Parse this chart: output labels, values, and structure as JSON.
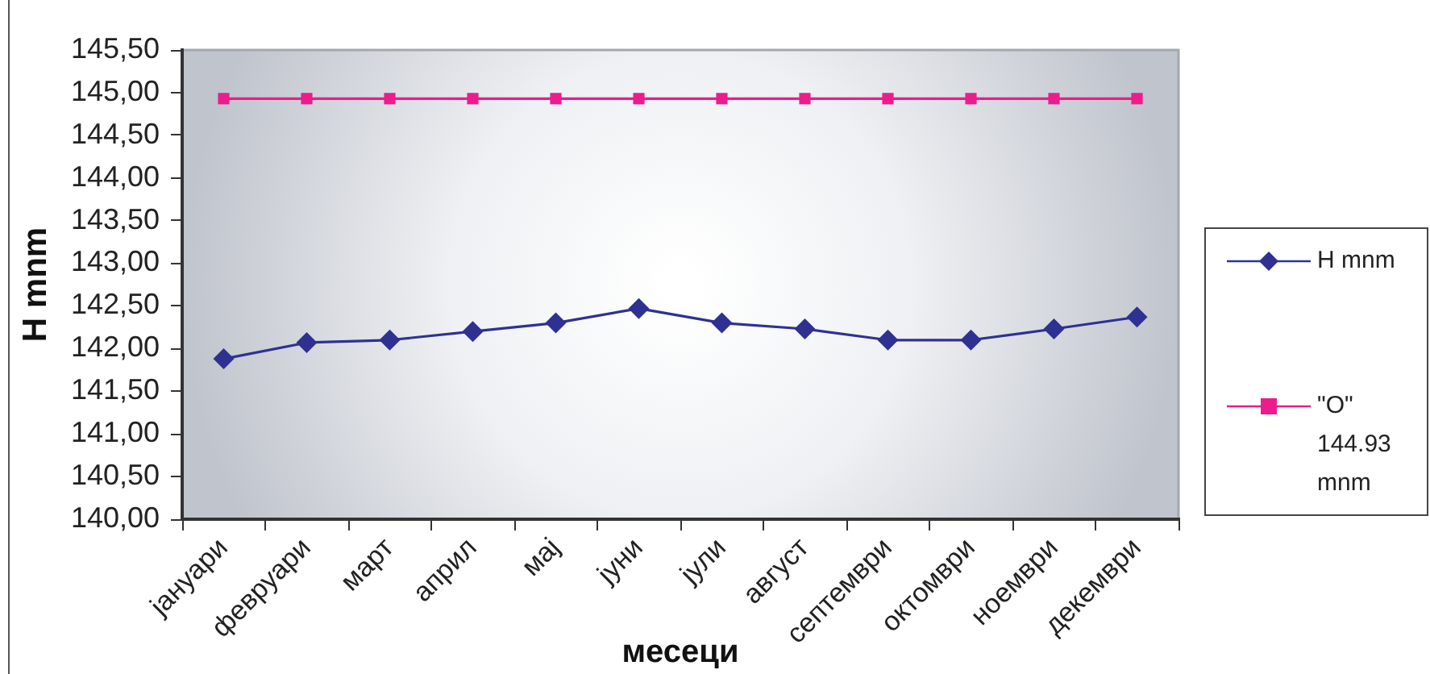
{
  "chart_data": {
    "type": "line",
    "xlabel": "месеци",
    "ylabel": "H mnm",
    "categories": [
      "јануари",
      "февруари",
      "март",
      "април",
      "мај",
      "јуни",
      "јули",
      "август",
      "септември",
      "октомври",
      "ноември",
      "декември"
    ],
    "series": [
      {
        "name": "H mnm",
        "color": "#2e3192",
        "marker": "diamond",
        "values": [
          141.88,
          142.07,
          142.1,
          142.2,
          142.3,
          142.47,
          142.3,
          142.23,
          142.1,
          142.1,
          142.23,
          142.37
        ]
      },
      {
        "name": "\"O\" 144.93 mnm",
        "color": "#ec1c8c",
        "marker": "square",
        "values": [
          144.93,
          144.93,
          144.93,
          144.93,
          144.93,
          144.93,
          144.93,
          144.93,
          144.93,
          144.93,
          144.93,
          144.93
        ]
      }
    ],
    "ylim": [
      140,
      145.5
    ],
    "yticks": [
      {
        "value": 140,
        "label": "140,00"
      },
      {
        "value": 140.5,
        "label": "140,50"
      },
      {
        "value": 141,
        "label": "141,00"
      },
      {
        "value": 141.5,
        "label": "141,50"
      },
      {
        "value": 142,
        "label": "142,00"
      },
      {
        "value": 142.5,
        "label": "142,50"
      },
      {
        "value": 143,
        "label": "143,00"
      },
      {
        "value": 143.5,
        "label": "143,50"
      },
      {
        "value": 144,
        "label": "144,00"
      },
      {
        "value": 144.5,
        "label": "144,50"
      },
      {
        "value": 145,
        "label": "145,00"
      },
      {
        "value": 145.5,
        "label": "145,50"
      }
    ],
    "grid": false,
    "legend": "right"
  }
}
